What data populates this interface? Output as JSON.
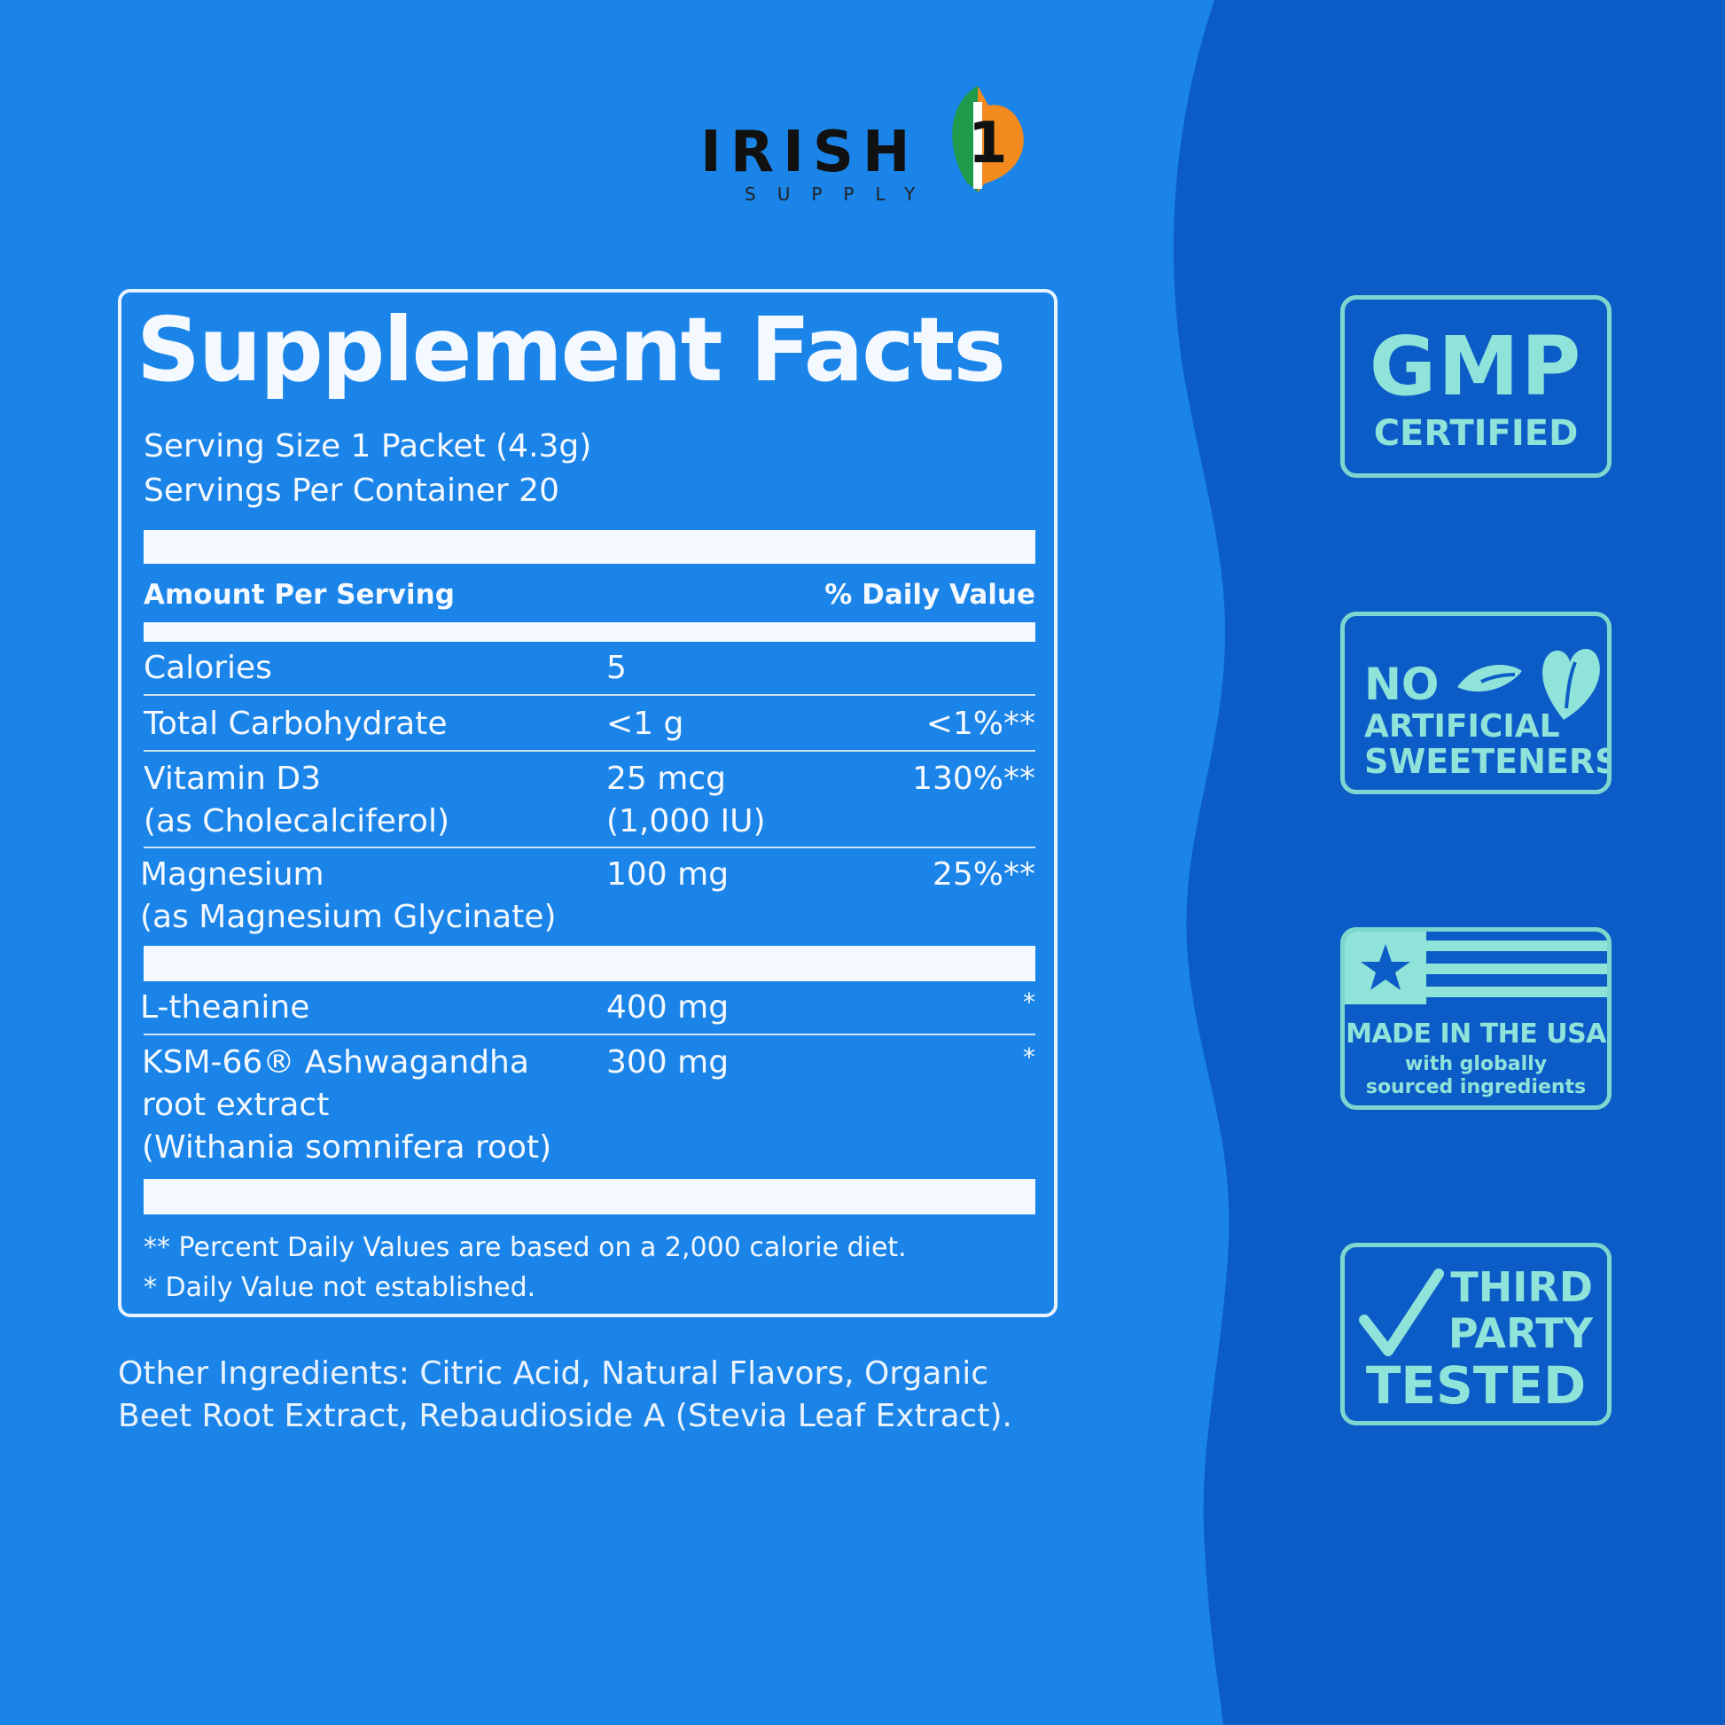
{
  "brand": {
    "name": "IRISH",
    "subtitle": "SUPPLY",
    "mark": "1"
  },
  "facts": {
    "title": "Supplement Facts",
    "serving_size": "Serving Size 1 Packet (4.3g)",
    "servings_per_container": "Servings Per Container 20",
    "header_amount": "Amount Per Serving",
    "header_dv": "% Daily Value",
    "rows": [
      {
        "name": [
          "Calories"
        ],
        "amount": [
          "5"
        ],
        "dv": ""
      },
      {
        "name": [
          "Total Carbohydrate"
        ],
        "amount": [
          "<1 g"
        ],
        "dv": "<1%**"
      },
      {
        "name": [
          "Vitamin D3",
          "(as Cholecalciferol)"
        ],
        "amount": [
          "25 mcg",
          "(1,000 IU)"
        ],
        "dv": "130%**"
      },
      {
        "name": [
          "Magnesium",
          "(as Magnesium Glycinate)"
        ],
        "amount": [
          "100 mg"
        ],
        "dv": "25%**"
      },
      {
        "name": [
          "L-theanine"
        ],
        "amount": [
          "400 mg"
        ],
        "dv": "*"
      },
      {
        "name": [
          "KSM-66® Ashwagandha",
          "root extract",
          "(Withania somnifera root)"
        ],
        "amount": [
          "300 mg"
        ],
        "dv": "*"
      }
    ],
    "footnote_1": "** Percent Daily Values are based on a 2,000 calorie diet.",
    "footnote_2": "* Daily Value not established."
  },
  "other_ingredients": [
    "Other Ingredients: Citric Acid, Natural Flavors, Organic",
    "Beet Root Extract, Rebaudioside A (Stevia Leaf Extract)."
  ],
  "badges": {
    "gmp": {
      "line1": "GMP",
      "line2": "CERTIFIED"
    },
    "sweeteners": {
      "line1": "NO",
      "line2": "ARTIFICIAL",
      "line3": "SWEETENERS"
    },
    "usa": {
      "line1": "MADE IN THE USA",
      "line2": "with globally",
      "line3": "sourced ingredients"
    },
    "tested": {
      "line1": "THIRD",
      "line2": "PARTY",
      "line3": "TESTED"
    }
  },
  "colors": {
    "background_left": "#1a84e8",
    "background_right": "#0c5cc7",
    "panel_text": "#f4f8ff",
    "badge_teal": "#8fe3d9",
    "logo_green": "#1e9a4a",
    "logo_orange": "#f28a1e"
  },
  "icons": [
    "leaf-icon",
    "star-icon",
    "checkmark-icon"
  ]
}
